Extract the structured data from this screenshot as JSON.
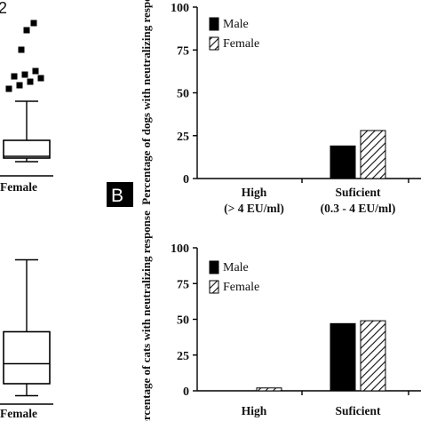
{
  "chart_data": [
    {
      "type": "box",
      "panel": "top-left",
      "panel_label_fragment": "2",
      "xlabel_fragment": "Female",
      "box": {
        "whisker_low": 2,
        "q1": 3,
        "median": 3.5,
        "q3": 8,
        "whisker_high": 19
      },
      "outliers": [
        22.5,
        23.5,
        24.5,
        25.5,
        26,
        26.5,
        27.5,
        33.5,
        39,
        41
      ]
    },
    {
      "type": "bar",
      "panel": "top-right",
      "panel_label": "B",
      "ylabel": "Percentage of dogs with neutralizing response",
      "ylim": [
        0,
        100
      ],
      "yticks": [
        "0",
        "25",
        "50",
        "75",
        "100"
      ],
      "categories": [
        "High",
        "Suficient"
      ],
      "category_sublabels": [
        "(> 4 EU/ml)",
        "(0.3 - 4 EU/ml)"
      ],
      "series": [
        {
          "name": "Male",
          "values": [
            0,
            19
          ],
          "color": "#000000",
          "pattern": "solid"
        },
        {
          "name": "Female",
          "values": [
            0,
            28
          ],
          "color": "#000000",
          "pattern": "hatched"
        }
      ],
      "legend": "top-left"
    },
    {
      "type": "box",
      "panel": "bottom-left",
      "xlabel_fragment": "Female",
      "box": {
        "whisker_low": 1,
        "q1": 4,
        "median": 9,
        "q3": 17,
        "whisker_high": 35
      },
      "outliers": []
    },
    {
      "type": "bar",
      "panel": "bottom-right",
      "ylabel": "Percentage of cats with neutralizing response",
      "ylim": [
        0,
        100
      ],
      "yticks": [
        "0",
        "25",
        "50",
        "75",
        "100"
      ],
      "categories": [
        "High",
        "Suficient"
      ],
      "series": [
        {
          "name": "Male",
          "values": [
            0,
            47
          ],
          "color": "#000000",
          "pattern": "solid"
        },
        {
          "name": "Female",
          "values": [
            2,
            49
          ],
          "color": "#000000",
          "pattern": "hatched"
        }
      ],
      "legend": "top-left"
    }
  ]
}
